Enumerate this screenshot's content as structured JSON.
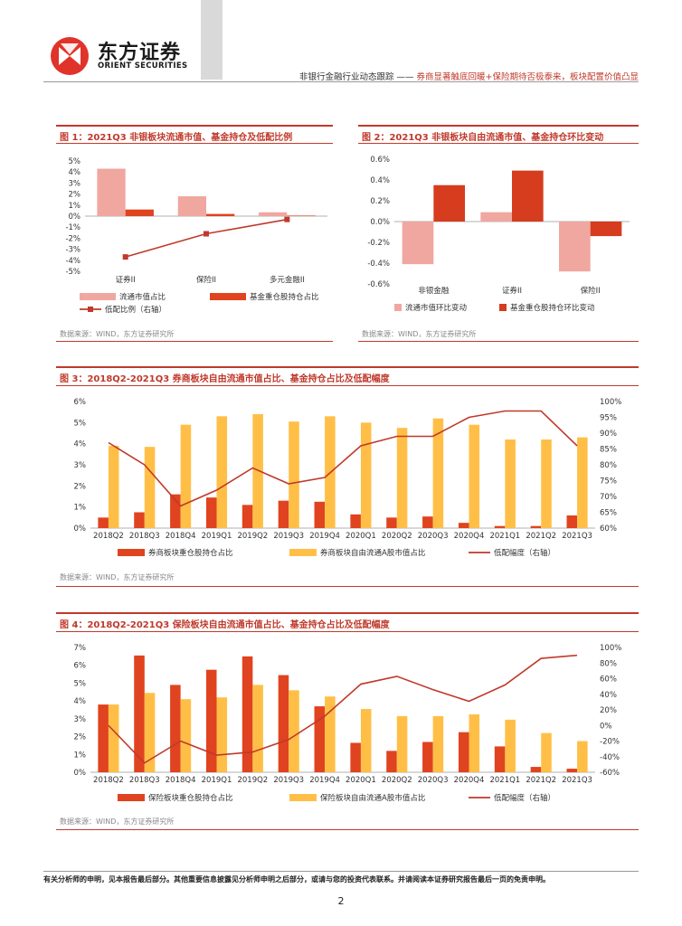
{
  "header": {
    "brand_cn": "东方证券",
    "brand_en": "ORIENT SECURITIES",
    "report_title": "非银行金融行业动态跟踪 —— ",
    "report_subtitle": "券商显著触底回暖+保险期待否极泰来，板块配置价值凸显"
  },
  "figures": {
    "fig1": {
      "title": "图 1：2021Q3 非银板块流通市值、基金持仓及低配比例",
      "source": "数据来源：WIND，东方证券研究所"
    },
    "fig2": {
      "title": "图 2：2021Q3 非银板块自由流通市值、基金持仓环比变动",
      "source": "数据来源：WIND，东方证券研究所"
    },
    "fig3": {
      "title": "图 3：2018Q2-2021Q3 券商板块自由流通市值占比、基金持仓占比及低配幅度",
      "source": "数据来源：WIND，东方证券研究所"
    },
    "fig4": {
      "title": "图 4：2018Q2-2021Q3 保险板块自由流通市值占比、基金持仓占比及低配幅度",
      "source": "数据来源：WIND，东方证券研究所"
    }
  },
  "chart_data": [
    {
      "type": "bar",
      "categories": [
        "证券II",
        "保险II",
        "多元金融II"
      ],
      "series": [
        {
          "name": "流通市值占比",
          "values": [
            4.3,
            1.8,
            0.35
          ],
          "color": "#f0a7a0"
        },
        {
          "name": "基金重仓股持仓占比",
          "values": [
            0.6,
            0.2,
            0.05
          ],
          "color": "#e0431f"
        },
        {
          "name": "低配比例（右轴）",
          "values": [
            -3.7,
            -1.6,
            -0.3
          ],
          "color": "#c0392b",
          "kind": "line"
        }
      ],
      "ylim": [
        -5,
        5
      ],
      "yticks": [
        "-5%",
        "-4%",
        "-3%",
        "-2%",
        "-1%",
        "0%",
        "1%",
        "2%",
        "3%",
        "4%",
        "5%"
      ]
    },
    {
      "type": "bar",
      "categories": [
        "非银金融",
        "证券II",
        "保险II"
      ],
      "series": [
        {
          "name": "流通市值环比变动",
          "values": [
            -0.41,
            0.09,
            -0.48
          ],
          "color": "#f0a7a0"
        },
        {
          "name": "基金重仓股持仓环比变动",
          "values": [
            0.35,
            0.49,
            -0.14
          ],
          "color": "#d63c1e"
        }
      ],
      "ylim": [
        -0.6,
        0.6
      ],
      "yticks": [
        "-0.6%",
        "-0.4%",
        "-0.2%",
        "0.0%",
        "0.2%",
        "0.4%",
        "0.6%"
      ]
    },
    {
      "type": "bar",
      "categories": [
        "2018Q2",
        "2018Q3",
        "2018Q4",
        "2019Q1",
        "2019Q2",
        "2019Q3",
        "2019Q4",
        "2020Q1",
        "2020Q2",
        "2020Q3",
        "2020Q4",
        "2021Q1",
        "2021Q2",
        "2021Q3"
      ],
      "series": [
        {
          "name": "券商板块重仓股持仓占比",
          "values": [
            0.5,
            0.75,
            1.6,
            1.45,
            1.1,
            1.3,
            1.25,
            0.65,
            0.5,
            0.55,
            0.25,
            0.1,
            0.1,
            0.6
          ],
          "color": "#e0431f"
        },
        {
          "name": "券商板块自由流通A股市值占比",
          "values": [
            3.9,
            3.85,
            4.9,
            5.3,
            5.4,
            5.05,
            5.3,
            5.0,
            4.75,
            5.2,
            4.9,
            4.2,
            4.2,
            4.3
          ],
          "color": "#ffbf47"
        },
        {
          "name": "低配幅度（右轴）",
          "values": [
            87,
            80,
            67,
            72,
            79,
            74,
            76,
            86,
            89,
            89,
            95,
            97,
            97,
            86
          ],
          "color": "#c0392b",
          "kind": "line"
        }
      ],
      "ylim": [
        0,
        6
      ],
      "y2lim": [
        60,
        100
      ],
      "yticks": [
        "0%",
        "1%",
        "2%",
        "3%",
        "4%",
        "5%",
        "6%"
      ],
      "y2ticks": [
        "60%",
        "65%",
        "70%",
        "75%",
        "80%",
        "85%",
        "90%",
        "95%",
        "100%"
      ]
    },
    {
      "type": "bar",
      "categories": [
        "2018Q2",
        "2018Q3",
        "2018Q4",
        "2019Q1",
        "2019Q2",
        "2019Q3",
        "2019Q4",
        "2020Q1",
        "2020Q2",
        "2020Q3",
        "2020Q4",
        "2021Q1",
        "2021Q2",
        "2021Q3"
      ],
      "series": [
        {
          "name": "保险板块重仓股持仓占比",
          "values": [
            3.8,
            6.55,
            4.9,
            5.75,
            6.5,
            5.45,
            3.7,
            1.65,
            1.2,
            1.7,
            2.25,
            1.45,
            0.3,
            0.2
          ],
          "color": "#e0431f"
        },
        {
          "name": "保险板块自由流通A股市值占比",
          "values": [
            3.8,
            4.45,
            4.1,
            4.2,
            4.9,
            4.6,
            4.25,
            3.55,
            3.15,
            3.15,
            3.25,
            2.95,
            2.2,
            1.75
          ],
          "color": "#ffbf47"
        },
        {
          "name": "低配幅度（右轴）",
          "values": [
            0,
            -48,
            -20,
            -38,
            -34,
            -18,
            12,
            53,
            63,
            46,
            31,
            52,
            86,
            90
          ],
          "color": "#c0392b",
          "kind": "line"
        }
      ],
      "ylim": [
        0,
        7
      ],
      "y2lim": [
        -60,
        100
      ],
      "yticks": [
        "0%",
        "1%",
        "2%",
        "3%",
        "4%",
        "5%",
        "6%",
        "7%"
      ],
      "y2ticks": [
        "-60%",
        "-40%",
        "-20%",
        "0%",
        "20%",
        "40%",
        "60%",
        "80%",
        "100%"
      ]
    }
  ],
  "footer": {
    "disclaimer": "有关分析师的申明，见本报告最后部分。其他重要信息披露见分析师申明之后部分，或请与您的投资代表联系。并请阅读本证券研究报告最后一页的免责申明。",
    "page": "2"
  }
}
